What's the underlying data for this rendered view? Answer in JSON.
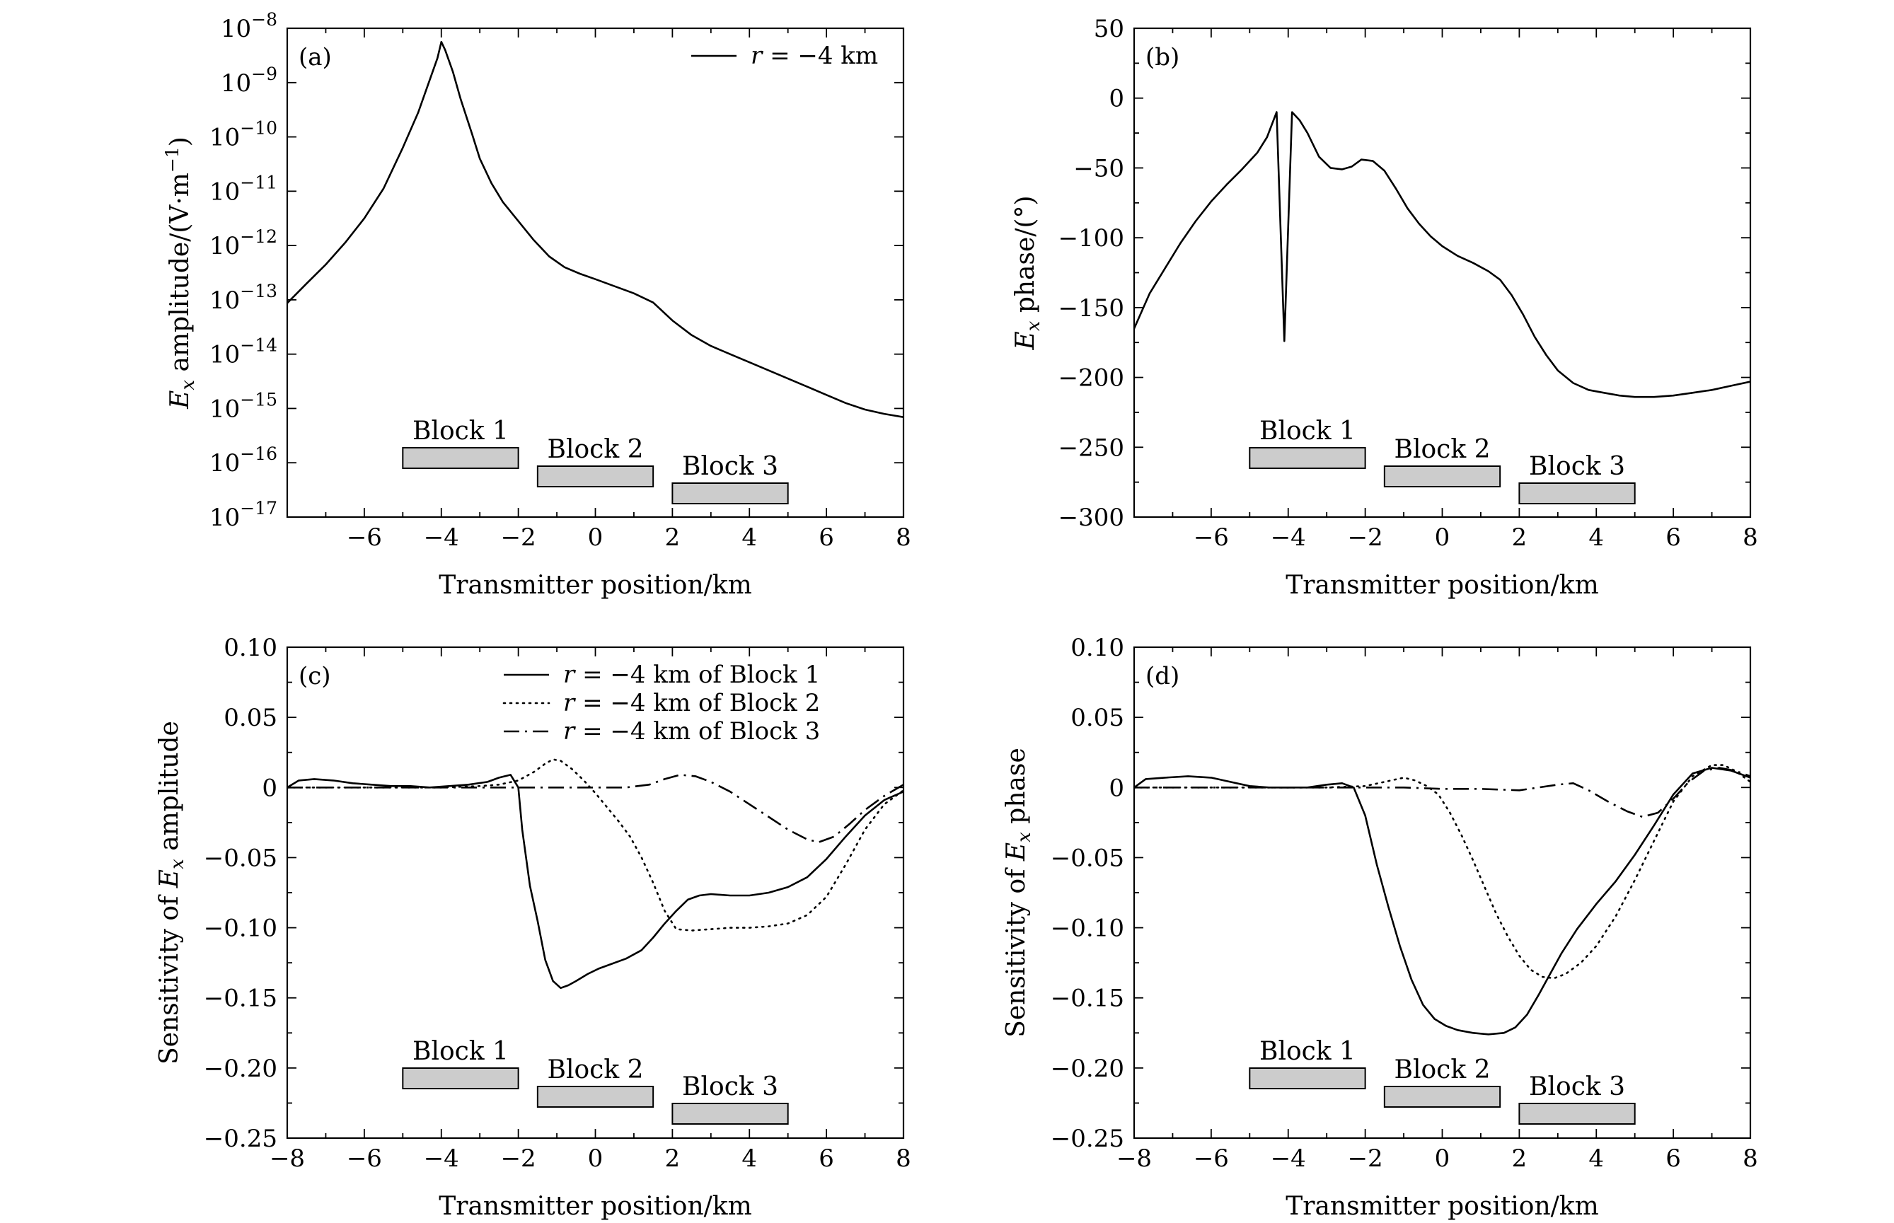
{
  "colors": {
    "line": "#000000",
    "block_fill": "#cccccc",
    "background": "#ffffff"
  },
  "chart_data": [
    {
      "id": "a",
      "type": "line",
      "panel_label": "(a)",
      "xlabel": "Transmitter position/km",
      "ylabel": "E_x amplitude/(V·m^-1)",
      "ylabel_parts": {
        "sym": "E",
        "sub": "x",
        "rest": " amplitude/(V·m",
        "sup": "−1",
        "close": ")"
      },
      "yscale": "log",
      "xlim": [
        -8,
        8
      ],
      "ylim_exp": [
        -17,
        -8
      ],
      "xticks": [
        -6,
        -4,
        -2,
        0,
        2,
        4,
        6,
        8
      ],
      "xtick_labels": [
        "−6",
        "−4",
        "−2",
        "0",
        "2",
        "4",
        "6",
        "8"
      ],
      "ytick_exps": [
        -17,
        -16,
        -15,
        -14,
        -13,
        -12,
        -11,
        -10,
        -9,
        -8
      ],
      "ytick_exp_labels": [
        "−17",
        "−16",
        "−15",
        "−14",
        "−13",
        "−12",
        "−11",
        "−10",
        "−9",
        "−8"
      ],
      "ytick_base": "10",
      "legend": {
        "position": "top-right",
        "entries": [
          {
            "name": "r = −4 km",
            "r_sym": "r",
            "text": " = −4 km",
            "style": "solid"
          }
        ]
      },
      "series": [
        {
          "name": "r = −4 km",
          "style": "solid",
          "x": [
            -8,
            -7.5,
            -7,
            -6.5,
            -6,
            -5.5,
            -5,
            -4.6,
            -4.3,
            -4.1,
            -4.0,
            -3.9,
            -3.7,
            -3.5,
            -3.2,
            -3.0,
            -2.7,
            -2.4,
            -2.0,
            -1.6,
            -1.2,
            -0.8,
            -0.4,
            0,
            0.5,
            1.0,
            1.5,
            2.0,
            2.5,
            3.0,
            3.5,
            4.0,
            4.5,
            5.0,
            5.5,
            6.0,
            6.5,
            7.0,
            7.5,
            8.0
          ],
          "y_exp": [
            -13.06,
            -12.7,
            -12.35,
            -11.95,
            -11.5,
            -10.95,
            -10.2,
            -9.55,
            -8.95,
            -8.55,
            -8.25,
            -8.4,
            -8.8,
            -9.3,
            -9.95,
            -10.4,
            -10.85,
            -11.2,
            -11.55,
            -11.9,
            -12.2,
            -12.4,
            -12.52,
            -12.62,
            -12.75,
            -12.88,
            -13.05,
            -13.38,
            -13.65,
            -13.85,
            -14.0,
            -14.15,
            -14.3,
            -14.45,
            -14.6,
            -14.75,
            -14.9,
            -15.02,
            -15.1,
            -15.16
          ]
        }
      ],
      "blocks": [
        {
          "label": "Block 1",
          "x0": -5,
          "x1": -2,
          "level": 1
        },
        {
          "label": "Block 2",
          "x0": -1.5,
          "x1": 1.5,
          "level": 2
        },
        {
          "label": "Block 3",
          "x0": 2,
          "x1": 5,
          "level": 3
        }
      ]
    },
    {
      "id": "b",
      "type": "line",
      "panel_label": "(b)",
      "xlabel": "Transmitter position/km",
      "ylabel": "E_x phase/(°)",
      "ylabel_parts": {
        "sym": "E",
        "sub": "x",
        "rest": " phase/(°)"
      },
      "yscale": "linear",
      "xlim": [
        -8,
        8
      ],
      "ylim": [
        -300,
        50
      ],
      "xticks": [
        -6,
        -4,
        -2,
        0,
        2,
        4,
        6,
        8
      ],
      "xtick_labels": [
        "−6",
        "−4",
        "−2",
        "0",
        "2",
        "4",
        "6",
        "8"
      ],
      "yticks": [
        -300,
        -250,
        -200,
        -150,
        -100,
        -50,
        0,
        50
      ],
      "ytick_labels": [
        "−300",
        "−250",
        "−200",
        "−150",
        "−100",
        "−50",
        "0",
        "50"
      ],
      "series": [
        {
          "name": "phase",
          "style": "solid",
          "x": [
            -8,
            -7.6,
            -7.2,
            -6.8,
            -6.4,
            -6.0,
            -5.6,
            -5.2,
            -4.8,
            -4.55,
            -4.3,
            -4.1,
            -3.9,
            -3.7,
            -3.5,
            -3.2,
            -2.9,
            -2.6,
            -2.35,
            -2.1,
            -1.8,
            -1.5,
            -1.2,
            -0.9,
            -0.6,
            -0.3,
            0,
            0.4,
            0.8,
            1.2,
            1.5,
            1.8,
            2.1,
            2.4,
            2.7,
            3.0,
            3.4,
            3.8,
            4.2,
            4.6,
            5.0,
            5.5,
            6.0,
            6.5,
            7.0,
            7.5,
            8.0
          ],
          "y": [
            -165,
            -140,
            -122,
            -104,
            -88,
            -74,
            -62,
            -51,
            -39,
            -28,
            -10,
            -174,
            -10,
            -16,
            -25,
            -42,
            -50,
            -51,
            -49,
            -44,
            -45,
            -52,
            -65,
            -79,
            -90,
            -99,
            -106,
            -113,
            -118,
            -124,
            -130,
            -141,
            -155,
            -171,
            -184,
            -195,
            -204,
            -209,
            -211,
            -213,
            -214,
            -214,
            -213,
            -211,
            -209,
            -206,
            -203
          ]
        }
      ],
      "blocks": [
        {
          "label": "Block 1",
          "x0": -5,
          "x1": -2,
          "level": 1
        },
        {
          "label": "Block 2",
          "x0": -1.5,
          "x1": 1.5,
          "level": 2
        },
        {
          "label": "Block 3",
          "x0": 2,
          "x1": 5,
          "level": 3
        }
      ]
    },
    {
      "id": "c",
      "type": "line",
      "panel_label": "(c)",
      "xlabel": "Transmitter position/km",
      "ylabel": "Sensitivity of E_x amplitude",
      "ylabel_parts": {
        "pre": "Sensitivity of ",
        "sym": "E",
        "sub": "x",
        "rest": " amplitude"
      },
      "yscale": "linear",
      "xlim": [
        -8,
        8
      ],
      "ylim": [
        -0.25,
        0.1
      ],
      "xticks": [
        -8,
        -6,
        -4,
        -2,
        0,
        2,
        4,
        6,
        8
      ],
      "xtick_labels": [
        "−8",
        "−6",
        "−4",
        "−2",
        "0",
        "2",
        "4",
        "6",
        "8"
      ],
      "yticks": [
        -0.25,
        -0.2,
        -0.15,
        -0.1,
        -0.05,
        0,
        0.05,
        0.1
      ],
      "ytick_labels": [
        "−0.25",
        "−0.20",
        "−0.15",
        "−0.10",
        "−0.05",
        "0",
        "0.05",
        "0.10"
      ],
      "legend": {
        "position": "top-right",
        "entries": [
          {
            "name": "r = −4 km of Block 1",
            "r_sym": "r",
            "text": " = −4 km of Block 1",
            "style": "solid"
          },
          {
            "name": "r = −4 km of Block 2",
            "r_sym": "r",
            "text": " = −4 km of Block 2",
            "style": "dotted"
          },
          {
            "name": "r = −4 km of Block 3",
            "r_sym": "r",
            "text": " = −4 km of Block 3",
            "style": "dashdot"
          }
        ]
      },
      "series": [
        {
          "name": "r = −4 km of Block 1",
          "style": "solid",
          "x": [
            -8,
            -7.7,
            -7.3,
            -6.8,
            -6.3,
            -5.8,
            -5.3,
            -4.8,
            -4.3,
            -3.8,
            -3.3,
            -2.8,
            -2.5,
            -2.2,
            -2.0,
            -1.9,
            -1.7,
            -1.5,
            -1.3,
            -1.1,
            -0.9,
            -0.7,
            -0.5,
            -0.2,
            0.1,
            0.4,
            0.8,
            1.2,
            1.5,
            1.8,
            2.1,
            2.4,
            2.7,
            3.0,
            3.5,
            4.0,
            4.5,
            5.0,
            5.5,
            6.0,
            6.5,
            7.0,
            7.5,
            8.0
          ],
          "y": [
            0.0,
            0.005,
            0.006,
            0.005,
            0.003,
            0.002,
            0.001,
            0.001,
            0.0,
            0.001,
            0.002,
            0.004,
            0.007,
            0.009,
            0.0,
            -0.03,
            -0.07,
            -0.095,
            -0.123,
            -0.138,
            -0.143,
            -0.141,
            -0.138,
            -0.133,
            -0.129,
            -0.126,
            -0.122,
            -0.116,
            -0.107,
            -0.097,
            -0.088,
            -0.08,
            -0.077,
            -0.076,
            -0.077,
            -0.077,
            -0.075,
            -0.071,
            -0.064,
            -0.051,
            -0.035,
            -0.02,
            -0.009,
            -0.003
          ]
        },
        {
          "name": "r = −4 km of Block 2",
          "style": "dotted",
          "x": [
            -8,
            -7,
            -6,
            -5,
            -4,
            -3,
            -2.5,
            -2.0,
            -1.6,
            -1.3,
            -1.1,
            -0.9,
            -0.6,
            -0.3,
            0,
            0.3,
            0.6,
            0.9,
            1.2,
            1.5,
            1.8,
            2.1,
            2.5,
            3.0,
            3.5,
            4.0,
            4.5,
            5.0,
            5.5,
            6.0,
            6.5,
            7.0,
            7.5,
            8.0
          ],
          "y": [
            0.0,
            0.0,
            0.0,
            0.0,
            0.0,
            0.001,
            0.002,
            0.005,
            0.011,
            0.017,
            0.02,
            0.019,
            0.013,
            0.005,
            -0.004,
            -0.014,
            -0.024,
            -0.035,
            -0.05,
            -0.068,
            -0.088,
            -0.101,
            -0.102,
            -0.101,
            -0.1,
            -0.1,
            -0.099,
            -0.097,
            -0.091,
            -0.078,
            -0.055,
            -0.03,
            -0.012,
            -0.002
          ]
        },
        {
          "name": "r = −4 km of Block 3",
          "style": "dashdot",
          "x": [
            -8,
            -7,
            -6,
            -5,
            -4,
            -3,
            -2,
            -1,
            0,
            0.8,
            1.4,
            1.8,
            2.2,
            2.6,
            3.0,
            3.5,
            4.0,
            4.5,
            5.0,
            5.5,
            5.8,
            6.2,
            6.6,
            7.0,
            7.5,
            8.0
          ],
          "y": [
            0.0,
            0.0,
            0.0,
            0.0,
            0.0,
            0.0,
            0.0,
            0.0,
            0.0,
            0.0,
            0.002,
            0.006,
            0.009,
            0.008,
            0.004,
            -0.003,
            -0.012,
            -0.021,
            -0.03,
            -0.037,
            -0.039,
            -0.035,
            -0.026,
            -0.016,
            -0.006,
            0.002
          ]
        }
      ],
      "blocks": [
        {
          "label": "Block 1",
          "x0": -5,
          "x1": -2,
          "level": 1
        },
        {
          "label": "Block 2",
          "x0": -1.5,
          "x1": 1.5,
          "level": 2
        },
        {
          "label": "Block 3",
          "x0": 2,
          "x1": 5,
          "level": 3
        }
      ]
    },
    {
      "id": "d",
      "type": "line",
      "panel_label": "(d)",
      "xlabel": "Transmitter position/km",
      "ylabel": "Sensitivity of E_x phase",
      "ylabel_parts": {
        "pre": "Sensitivity of ",
        "sym": "E",
        "sub": "x",
        "rest": " phase"
      },
      "yscale": "linear",
      "xlim": [
        -8,
        8
      ],
      "ylim": [
        -0.25,
        0.1
      ],
      "xticks": [
        -8,
        -6,
        -4,
        -2,
        0,
        2,
        4,
        6,
        8
      ],
      "xtick_labels": [
        "−8",
        "−6",
        "−4",
        "−2",
        "0",
        "2",
        "4",
        "6",
        "8"
      ],
      "yticks": [
        -0.25,
        -0.2,
        -0.15,
        -0.1,
        -0.05,
        0,
        0.05,
        0.1
      ],
      "ytick_labels": [
        "−0.25",
        "−0.20",
        "−0.15",
        "−0.10",
        "−0.05",
        "0",
        "0.05",
        "0.10"
      ],
      "series": [
        {
          "name": "Block 1",
          "style": "solid",
          "x": [
            -8,
            -7.7,
            -7.2,
            -6.6,
            -6.0,
            -5.5,
            -5.0,
            -4.5,
            -4.0,
            -3.5,
            -3.0,
            -2.6,
            -2.3,
            -2.0,
            -1.7,
            -1.4,
            -1.1,
            -0.8,
            -0.5,
            -0.2,
            0.1,
            0.4,
            0.8,
            1.2,
            1.6,
            1.9,
            2.2,
            2.5,
            2.8,
            3.1,
            3.5,
            4.0,
            4.5,
            5.0,
            5.5,
            6.0,
            6.5,
            7.0,
            7.5,
            8.0
          ],
          "y": [
            0.0,
            0.006,
            0.007,
            0.008,
            0.007,
            0.004,
            0.001,
            0.0,
            0.0,
            0.0,
            0.002,
            0.003,
            0.0,
            -0.02,
            -0.055,
            -0.085,
            -0.113,
            -0.137,
            -0.155,
            -0.165,
            -0.17,
            -0.173,
            -0.175,
            -0.176,
            -0.175,
            -0.171,
            -0.162,
            -0.148,
            -0.133,
            -0.118,
            -0.101,
            -0.083,
            -0.067,
            -0.048,
            -0.027,
            -0.005,
            0.01,
            0.014,
            0.012,
            0.007
          ]
        },
        {
          "name": "Block 2",
          "style": "dotted",
          "x": [
            -8,
            -7,
            -6,
            -5,
            -4,
            -3,
            -2,
            -1.5,
            -1.0,
            -0.7,
            -0.4,
            -0.1,
            0.2,
            0.5,
            0.8,
            1.1,
            1.4,
            1.7,
            2.0,
            2.3,
            2.6,
            2.9,
            3.2,
            3.6,
            4.0,
            4.5,
            5.0,
            5.5,
            6.0,
            6.5,
            7.0,
            7.3,
            7.6,
            8.0
          ],
          "y": [
            0.0,
            0.0,
            0.0,
            0.0,
            0.0,
            0.0,
            0.001,
            0.004,
            0.007,
            0.005,
            0.001,
            -0.005,
            -0.018,
            -0.034,
            -0.052,
            -0.071,
            -0.09,
            -0.106,
            -0.12,
            -0.13,
            -0.135,
            -0.136,
            -0.133,
            -0.125,
            -0.113,
            -0.092,
            -0.066,
            -0.038,
            -0.01,
            0.008,
            0.016,
            0.016,
            0.012,
            0.004
          ]
        },
        {
          "name": "Block 3",
          "style": "dashdot",
          "x": [
            -8,
            -6,
            -4,
            -2,
            -1,
            0,
            1,
            2,
            2.5,
            3.0,
            3.4,
            3.8,
            4.3,
            4.8,
            5.2,
            5.6,
            6.0,
            6.4,
            6.8,
            7.2,
            7.6,
            8.0
          ],
          "y": [
            0.0,
            0.0,
            0.0,
            0.0,
            0.0,
            -0.001,
            -0.001,
            -0.002,
            0.0,
            0.002,
            0.003,
            -0.002,
            -0.01,
            -0.017,
            -0.021,
            -0.018,
            -0.008,
            0.004,
            0.012,
            0.014,
            0.012,
            0.008
          ]
        }
      ],
      "blocks": [
        {
          "label": "Block 1",
          "x0": -5,
          "x1": -2,
          "level": 1
        },
        {
          "label": "Block 2",
          "x0": -1.5,
          "x1": 1.5,
          "level": 2
        },
        {
          "label": "Block 3",
          "x0": 2,
          "x1": 5,
          "level": 3
        }
      ]
    }
  ]
}
